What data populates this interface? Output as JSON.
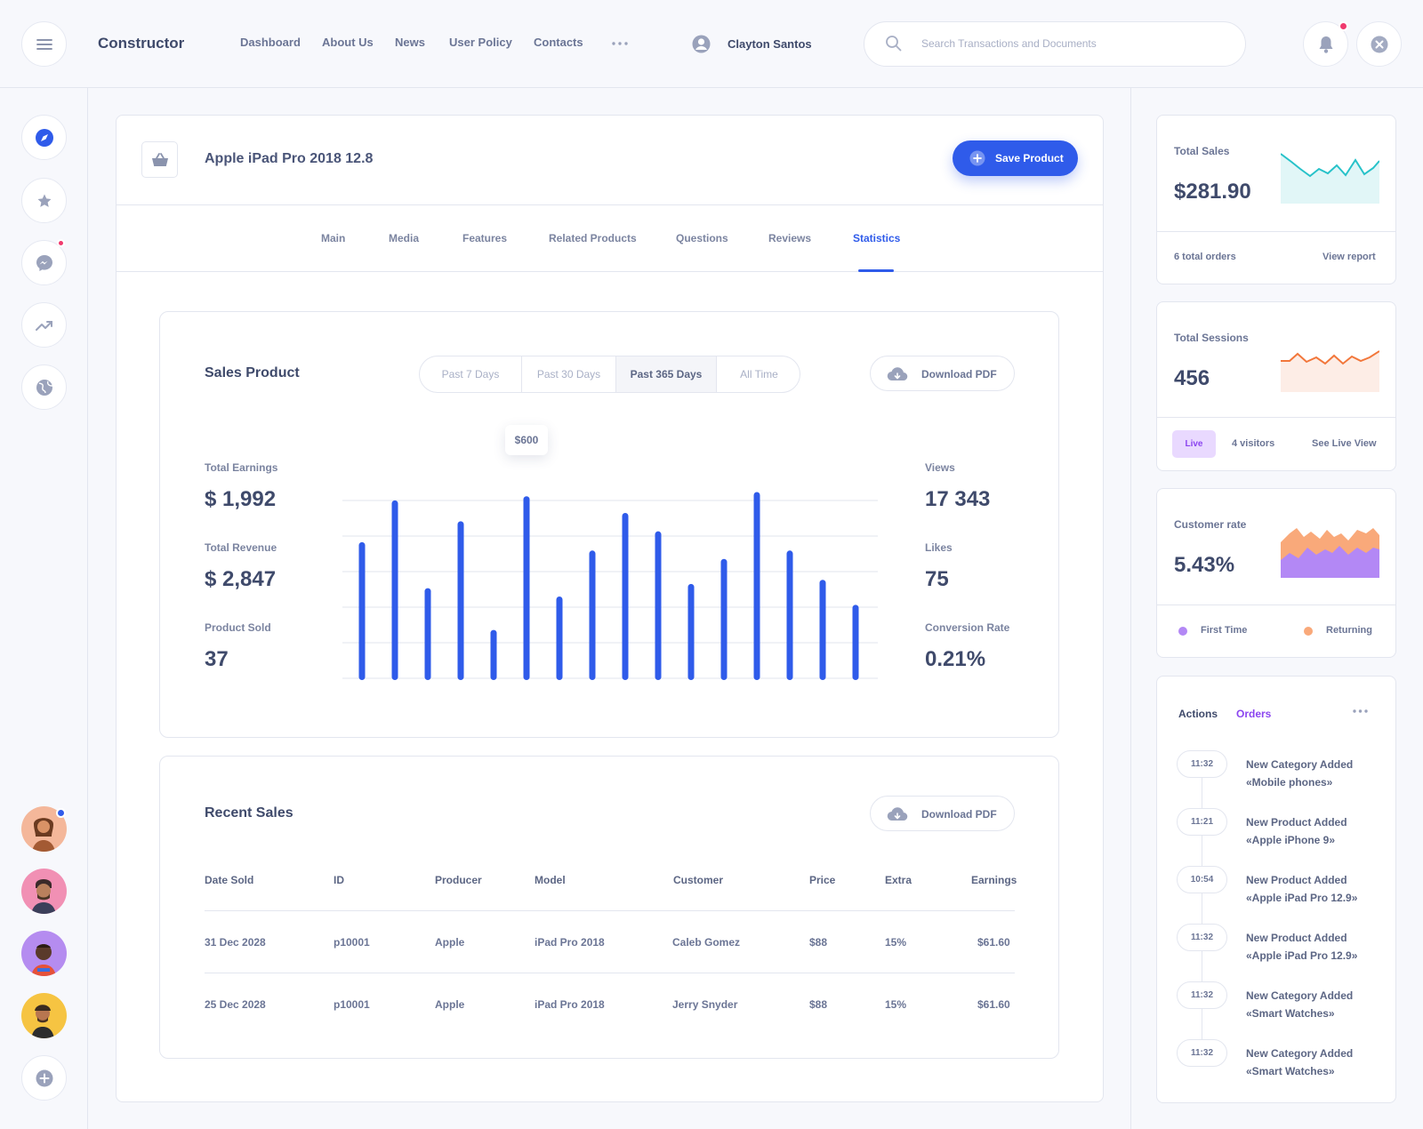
{
  "header": {
    "brand": "Constructor",
    "nav": [
      "Dashboard",
      "About Us",
      "News",
      "User Policy",
      "Contacts"
    ],
    "user_name": "Clayton Santos",
    "search_placeholder": "Search Transactions and Documents"
  },
  "product": {
    "name": "Apple iPad Pro 2018 12.8",
    "save_label": "Save Product"
  },
  "tabs": [
    "Main",
    "Media",
    "Features",
    "Related Products",
    "Questions",
    "Reviews",
    "Statistics"
  ],
  "active_tab": "Statistics",
  "sales": {
    "title": "Sales Product",
    "ranges": [
      "Past 7 Days",
      "Past 30 Days",
      "Past 365 Days",
      "All Time"
    ],
    "active_range": "Past 365 Days",
    "download_label": "Download PDF",
    "tooltip": "$600",
    "left_stats": [
      {
        "label": "Total Earnings",
        "value": "$ 1,992"
      },
      {
        "label": "Total Revenue",
        "value": "$ 2,847"
      },
      {
        "label": "Product Sold",
        "value": "37"
      }
    ],
    "right_stats": [
      {
        "label": "Views",
        "value": "17 343"
      },
      {
        "label": "Likes",
        "value": "75"
      },
      {
        "label": "Conversion Rate",
        "value": "0.21%"
      }
    ]
  },
  "chart_data": {
    "type": "bar",
    "values": [
      165,
      215,
      110,
      190,
      60,
      220,
      100,
      155,
      200,
      178,
      115,
      145,
      225,
      155,
      120,
      90
    ],
    "ylim": [
      0,
      250
    ],
    "grid": true,
    "color": "#2f5bea"
  },
  "recent_sales": {
    "title": "Recent Sales",
    "download_label": "Download PDF",
    "columns": [
      "Date Sold",
      "ID",
      "Producer",
      "Model",
      "Customer",
      "Price",
      "Extra",
      "Earnings"
    ],
    "rows": [
      [
        "31 Dec 2028",
        "p10001",
        "Apple",
        "iPad Pro 2018",
        "Caleb Gomez",
        "$88",
        "15%",
        "$61.60"
      ],
      [
        "25 Dec 2028",
        "p10001",
        "Apple",
        "iPad Pro 2018",
        "Jerry Snyder",
        "$88",
        "15%",
        "$61.60"
      ]
    ]
  },
  "widgets": {
    "total_sales": {
      "label": "Total Sales",
      "value": "$281.90",
      "orders": "6 total orders",
      "link": "View report",
      "color": "#27c2c9"
    },
    "total_sessions": {
      "label": "Total Sessions",
      "value": "456",
      "badge": "Live",
      "visitors": "4 visitors",
      "link": "See Live View",
      "color": "#f2773b"
    },
    "customer_rate": {
      "label": "Customer rate",
      "value": "5.43%",
      "legend": [
        "First Time",
        "Returning"
      ],
      "colors": [
        "#b388f5",
        "#f9a97a"
      ]
    }
  },
  "activity": {
    "tabs": [
      "Actions",
      "Orders"
    ],
    "items": [
      {
        "time": "11:32",
        "title": "New Category Added",
        "detail": "«Mobile phones»"
      },
      {
        "time": "11:21",
        "title": "New Product Added",
        "detail": "«Apple iPhone 9»"
      },
      {
        "time": "10:54",
        "title": "New Product Added",
        "detail": "«Apple iPad Pro 12.9»"
      },
      {
        "time": "11:32",
        "title": "New Product Added",
        "detail": "«Apple iPad Pro 12.9»"
      },
      {
        "time": "11:32",
        "title": "New Category Added",
        "detail": "«Smart Watches»"
      },
      {
        "time": "11:32",
        "title": "New Category Added",
        "detail": "«Smart Watches»"
      }
    ]
  },
  "icons": {
    "menu": "menu-icon",
    "user": "user-icon",
    "search": "search-icon",
    "bell": "bell-icon",
    "close": "close-icon",
    "compass": "compass-icon",
    "star": "star-icon",
    "messenger": "messenger-icon",
    "trend": "trend-icon",
    "globe": "globe-icon",
    "add": "add-icon",
    "basket": "basket-icon",
    "cloud": "cloud-download-icon"
  }
}
